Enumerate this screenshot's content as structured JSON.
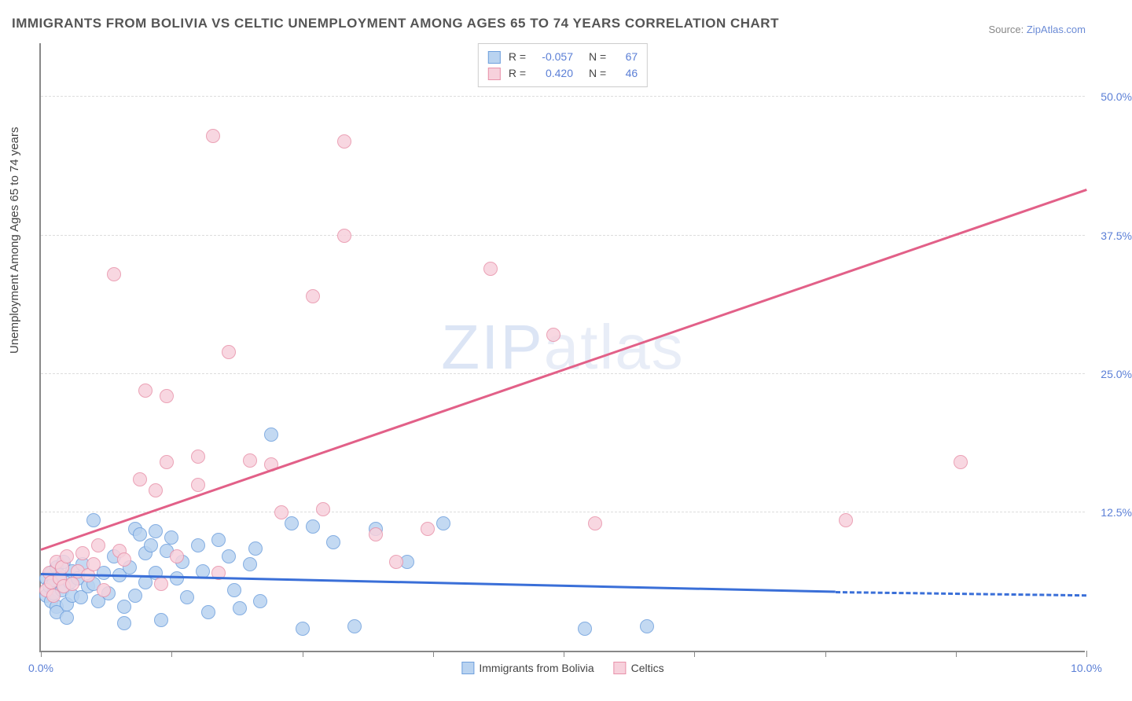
{
  "title": "IMMIGRANTS FROM BOLIVIA VS CELTIC UNEMPLOYMENT AMONG AGES 65 TO 74 YEARS CORRELATION CHART",
  "source_prefix": "Source: ",
  "source_link": "ZipAtlas.com",
  "ylabel": "Unemployment Among Ages 65 to 74 years",
  "watermark_bold": "ZIP",
  "watermark_thin": "atlas",
  "chart": {
    "type": "scatter",
    "background_color": "#ffffff",
    "grid_color": "#dddddd",
    "axis_color": "#888888",
    "xlim": [
      0.0,
      10.0
    ],
    "ylim": [
      0.0,
      55.0
    ],
    "xtick_positions": [
      0.0,
      1.25,
      2.5,
      3.75,
      5.0,
      6.25,
      7.5,
      8.75,
      10.0
    ],
    "xtick_labels": {
      "0": "0.0%",
      "8": "10.0%"
    },
    "ytick_positions": [
      12.5,
      25.0,
      37.5,
      50.0
    ],
    "ytick_labels": [
      "12.5%",
      "25.0%",
      "37.5%",
      "50.0%"
    ],
    "marker_radius": 9,
    "marker_border_width": 1.5,
    "series": [
      {
        "name": "Immigrants from Bolivia",
        "fill_color": "#b9d3f0",
        "border_color": "#6fa0dd",
        "trend_color": "#3a6fd8",
        "trend_width": 3,
        "R": "-0.057",
        "N": "67",
        "trend": {
          "x1": 0.0,
          "y1": 6.8,
          "x2": 7.6,
          "y2": 5.2,
          "dashed_after_x": 7.6,
          "x2_dash": 10.0,
          "y2_dash": 4.9
        },
        "points": [
          [
            0.05,
            5.0
          ],
          [
            0.05,
            6.5
          ],
          [
            0.08,
            5.8
          ],
          [
            0.1,
            4.5
          ],
          [
            0.1,
            7.0
          ],
          [
            0.12,
            6.0
          ],
          [
            0.12,
            5.2
          ],
          [
            0.15,
            7.5
          ],
          [
            0.15,
            4.0
          ],
          [
            0.18,
            6.8
          ],
          [
            0.2,
            5.5
          ],
          [
            0.22,
            8.0
          ],
          [
            0.25,
            4.2
          ],
          [
            0.28,
            6.2
          ],
          [
            0.3,
            7.2
          ],
          [
            0.3,
            5.0
          ],
          [
            0.35,
            6.5
          ],
          [
            0.38,
            4.8
          ],
          [
            0.4,
            7.8
          ],
          [
            0.45,
            5.8
          ],
          [
            0.5,
            11.8
          ],
          [
            0.5,
            6.0
          ],
          [
            0.55,
            4.5
          ],
          [
            0.6,
            7.0
          ],
          [
            0.65,
            5.2
          ],
          [
            0.7,
            8.5
          ],
          [
            0.75,
            6.8
          ],
          [
            0.8,
            4.0
          ],
          [
            0.8,
            2.5
          ],
          [
            0.85,
            7.5
          ],
          [
            0.9,
            11.0
          ],
          [
            0.9,
            5.0
          ],
          [
            0.95,
            10.5
          ],
          [
            1.0,
            8.8
          ],
          [
            1.0,
            6.2
          ],
          [
            1.05,
            9.5
          ],
          [
            1.1,
            10.8
          ],
          [
            1.1,
            7.0
          ],
          [
            1.15,
            2.8
          ],
          [
            1.2,
            9.0
          ],
          [
            1.25,
            10.2
          ],
          [
            1.3,
            6.5
          ],
          [
            1.35,
            8.0
          ],
          [
            1.4,
            4.8
          ],
          [
            1.5,
            9.5
          ],
          [
            1.55,
            7.2
          ],
          [
            1.6,
            3.5
          ],
          [
            1.7,
            10.0
          ],
          [
            1.8,
            8.5
          ],
          [
            1.85,
            5.5
          ],
          [
            1.9,
            3.8
          ],
          [
            2.0,
            7.8
          ],
          [
            2.05,
            9.2
          ],
          [
            2.1,
            4.5
          ],
          [
            2.2,
            19.5
          ],
          [
            2.4,
            11.5
          ],
          [
            2.5,
            2.0
          ],
          [
            2.6,
            11.2
          ],
          [
            2.8,
            9.8
          ],
          [
            3.0,
            2.2
          ],
          [
            3.2,
            11.0
          ],
          [
            3.5,
            8.0
          ],
          [
            3.85,
            11.5
          ],
          [
            5.2,
            2.0
          ],
          [
            5.8,
            2.2
          ],
          [
            0.15,
            3.5
          ],
          [
            0.25,
            3.0
          ]
        ]
      },
      {
        "name": "Celtics",
        "fill_color": "#f7d1dc",
        "border_color": "#e892aa",
        "trend_color": "#e26088",
        "trend_width": 3,
        "R": "0.420",
        "N": "46",
        "trend": {
          "x1": 0.0,
          "y1": 9.0,
          "x2": 10.0,
          "y2": 41.5
        },
        "points": [
          [
            0.05,
            5.5
          ],
          [
            0.08,
            7.0
          ],
          [
            0.1,
            6.2
          ],
          [
            0.12,
            5.0
          ],
          [
            0.15,
            8.0
          ],
          [
            0.18,
            6.5
          ],
          [
            0.2,
            7.5
          ],
          [
            0.22,
            5.8
          ],
          [
            0.25,
            8.5
          ],
          [
            0.3,
            6.0
          ],
          [
            0.35,
            7.2
          ],
          [
            0.4,
            8.8
          ],
          [
            0.45,
            6.8
          ],
          [
            0.5,
            7.8
          ],
          [
            0.6,
            5.5
          ],
          [
            0.7,
            34.0
          ],
          [
            0.75,
            9.0
          ],
          [
            0.8,
            8.2
          ],
          [
            0.95,
            15.5
          ],
          [
            1.0,
            23.5
          ],
          [
            1.1,
            14.5
          ],
          [
            1.15,
            6.0
          ],
          [
            1.2,
            17.0
          ],
          [
            1.2,
            23.0
          ],
          [
            1.3,
            8.5
          ],
          [
            1.5,
            17.5
          ],
          [
            1.5,
            15.0
          ],
          [
            1.65,
            46.5
          ],
          [
            1.7,
            7.0
          ],
          [
            1.8,
            27.0
          ],
          [
            2.0,
            17.2
          ],
          [
            2.2,
            16.8
          ],
          [
            2.3,
            12.5
          ],
          [
            2.6,
            32.0
          ],
          [
            2.7,
            12.8
          ],
          [
            2.9,
            46.0
          ],
          [
            2.9,
            37.5
          ],
          [
            3.2,
            10.5
          ],
          [
            3.4,
            8.0
          ],
          [
            3.7,
            11.0
          ],
          [
            4.3,
            34.5
          ],
          [
            4.9,
            28.5
          ],
          [
            5.3,
            11.5
          ],
          [
            7.7,
            11.8
          ],
          [
            8.8,
            17.0
          ],
          [
            0.55,
            9.5
          ]
        ]
      }
    ]
  },
  "legend_top": {
    "rows": [
      {
        "swatch_fill": "#b9d3f0",
        "swatch_border": "#6fa0dd",
        "r_label": "R =",
        "r_val": "-0.057",
        "n_label": "N =",
        "n_val": "67"
      },
      {
        "swatch_fill": "#f7d1dc",
        "swatch_border": "#e892aa",
        "r_label": "R =",
        "r_val": "0.420",
        "n_label": "N =",
        "n_val": "46"
      }
    ]
  },
  "legend_bottom": [
    {
      "swatch_fill": "#b9d3f0",
      "swatch_border": "#6fa0dd",
      "label": "Immigrants from Bolivia"
    },
    {
      "swatch_fill": "#f7d1dc",
      "swatch_border": "#e892aa",
      "label": "Celtics"
    }
  ]
}
